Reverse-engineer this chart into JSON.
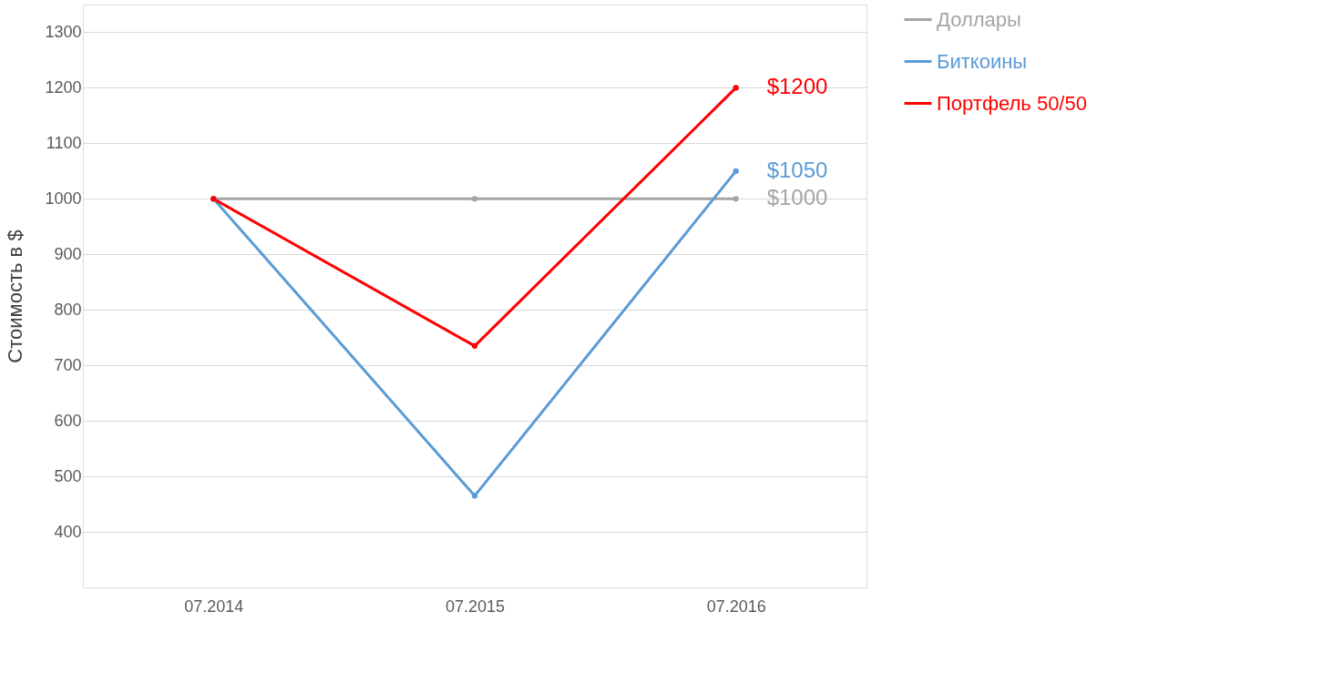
{
  "chart_data": {
    "type": "line",
    "ylabel": "Стоимость в $",
    "categories": [
      "07.2014",
      "07.2015",
      "07.2016"
    ],
    "series": [
      {
        "name": "Доллары",
        "color": "#a5a5a5",
        "values": [
          1000,
          1000,
          1000
        ],
        "value_labels": [
          null,
          null,
          "$1000"
        ]
      },
      {
        "name": "Биткоины",
        "color": "#5b9bd5",
        "values": [
          1000,
          465,
          1050
        ],
        "value_labels": [
          null,
          null,
          "$1050"
        ]
      },
      {
        "name": "Портфель 50/50",
        "color": "#ff0000",
        "values": [
          1000,
          735,
          1200
        ],
        "value_labels": [
          null,
          null,
          "$1200"
        ]
      }
    ],
    "ylim": [
      300,
      1350
    ],
    "yticks": [
      400,
      500,
      600,
      700,
      800,
      900,
      1000,
      1100,
      1200,
      1300
    ],
    "grid": "y",
    "legend": "top right",
    "marker": "circle",
    "line_style": "solid"
  }
}
